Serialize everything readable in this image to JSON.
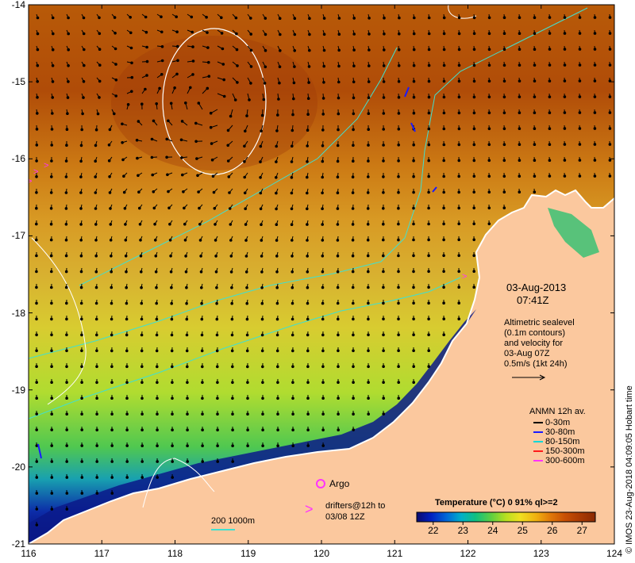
{
  "map": {
    "lon_ticks": [
      "116",
      "117",
      "118",
      "119",
      "120",
      "121",
      "122",
      "123",
      "124"
    ],
    "lat_ticks": [
      "-14",
      "-15",
      "-16",
      "-17",
      "-18",
      "-19",
      "-20",
      "-21"
    ],
    "lon_range": [
      116,
      124
    ],
    "lat_range": [
      -21,
      -14
    ]
  },
  "info": {
    "date": "03-Aug-2013",
    "time": "07:41Z",
    "altimetry_lines": [
      "Altimetric sealevel",
      "(0.1m contours)",
      "and velocity for",
      "03-Aug 07Z",
      "0.5m/s (1kt 24h)"
    ]
  },
  "anmn_legend": {
    "title": "ANMN 12h av.",
    "items": [
      {
        "label": "0-30m",
        "color": "#000000"
      },
      {
        "label": "30-80m",
        "color": "#1a1aff"
      },
      {
        "label": "80-150m",
        "color": "#00d8d8"
      },
      {
        "label": "150-300m",
        "color": "#ff1a1a"
      },
      {
        "label": "300-600m",
        "color": "#ff33ff"
      }
    ]
  },
  "argo": {
    "label": "Argo",
    "color": "#ff33ff"
  },
  "drifters": {
    "line1": "drifters@12h to",
    "line2": "03/08 12Z",
    "symbol": ">"
  },
  "bathymetry": {
    "label": "200  1000m",
    "color": "#40e0d0"
  },
  "colorbar": {
    "title": "Temperature (°C) 0 91% ql>=2",
    "ticks": [
      "22",
      "23",
      "24",
      "25",
      "26",
      "27"
    ],
    "colors": [
      "#0a0a6e",
      "#0020c0",
      "#006ad8",
      "#00b0c8",
      "#10c080",
      "#60d040",
      "#b8e020",
      "#f0e020",
      "#f0b010",
      "#e07808",
      "#c85004",
      "#a83a04",
      "#8a2a04"
    ]
  },
  "credit": "© IMOS 23-Aug-2018 04:09:05 Hobart time"
}
